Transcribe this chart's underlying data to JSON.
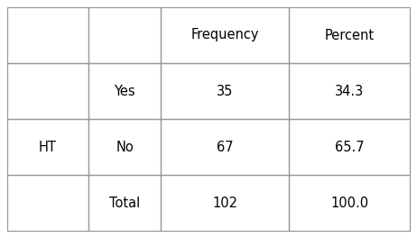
{
  "col_headers": [
    "",
    "",
    "Frequency",
    "Percent"
  ],
  "row_label": "HT",
  "rows": [
    [
      "Yes",
      "35",
      "34.3"
    ],
    [
      "No",
      "67",
      "65.7"
    ],
    [
      "Total",
      "102",
      "100.0"
    ]
  ],
  "bg_color": "#ffffff",
  "line_color": "#999999",
  "text_color": "#000000",
  "font_size": 10.5,
  "fig_width": 4.62,
  "fig_height": 2.64,
  "dpi": 100
}
